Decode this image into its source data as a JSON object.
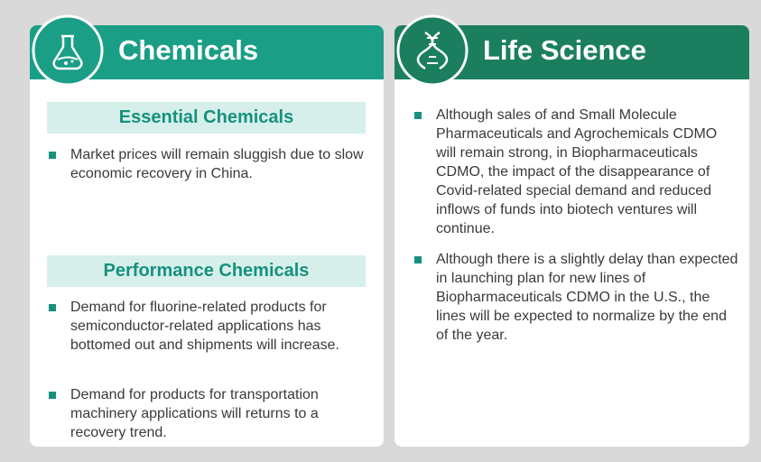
{
  "left": {
    "title": "Chemicals",
    "sections": [
      {
        "heading": "Essential Chemicals",
        "bullets": [
          "Market prices will remain sluggish due to slow economic recovery in China."
        ]
      },
      {
        "heading": "Performance Chemicals",
        "bullets": [
          "Demand for fluorine-related products for semiconductor-related applications has bottomed out and shipments will increase.",
          "Demand for products for transportation machinery applications will returns to a recovery trend."
        ]
      }
    ]
  },
  "right": {
    "title": "Life Science",
    "bullets": [
      "Although sales of and Small Molecule Pharmaceuticals and Agrochemicals CDMO will remain strong, in Biopharmaceuticals CDMO, the impact of the disappearance of Covid-related special demand and reduced inflows of funds into biotech ventures will continue.",
      "Although there is a slightly delay than expected in launching plan for new lines of Biopharmaceuticals CDMO in the U.S., the lines will be expected to normalize by the end of the year."
    ]
  }
}
